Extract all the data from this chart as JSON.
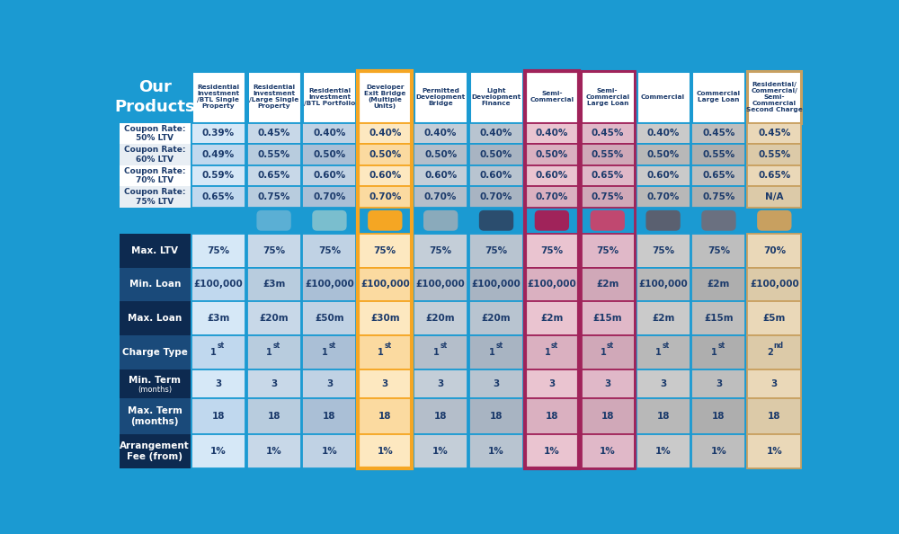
{
  "bg_color": "#1B9AD2",
  "columns": [
    {
      "label": "Residential\nInvestment\n/BTL Single\nProperty",
      "border": "#1B9AD2",
      "bg_light": "#D6E8F7",
      "bg_dark": "#C0D8EE",
      "icon_bg": "#1B9AD2"
    },
    {
      "label": "Residential\nInvestment\n/Large Single\nProperty",
      "border": "#1B9AD2",
      "bg_light": "#C8D8E8",
      "bg_dark": "#B8CCDE",
      "icon_bg": "#5BAFD4"
    },
    {
      "label": "Residential\nInvestment\n/BTL Portfolio",
      "border": "#1B9AD2",
      "bg_light": "#C0D2E4",
      "bg_dark": "#AABFD6",
      "icon_bg": "#7ABECE"
    },
    {
      "label": "Developer\nExit Bridge\n(Multiple\nUnits)",
      "border": "#F5A623",
      "bg_light": "#FDE8C0",
      "bg_dark": "#FBDAA0",
      "icon_bg": "#F5A623"
    },
    {
      "label": "Permitted\nDevelopment\nBridge",
      "border": "#1B9AD2",
      "bg_light": "#C4CED8",
      "bg_dark": "#B4BECA",
      "icon_bg": "#8AAABB"
    },
    {
      "label": "Light\nDevelopment\nFinance",
      "border": "#1B9AD2",
      "bg_light": "#B8C4D0",
      "bg_dark": "#A8B4C2",
      "icon_bg": "#2B4D6E"
    },
    {
      "label": "Semi-\nCommercial",
      "border": "#A0235A",
      "bg_light": "#EAC4D0",
      "bg_dark": "#DAB0C0",
      "icon_bg": "#A0235A"
    },
    {
      "label": "Semi-\nCommercial\nLarge Loan",
      "border": "#A0235A",
      "bg_light": "#E0B8C8",
      "bg_dark": "#D0A8B8",
      "icon_bg": "#C04870"
    },
    {
      "label": "Commercial",
      "border": "#1B9AD2",
      "bg_light": "#CACACA",
      "bg_dark": "#B8B8B8",
      "icon_bg": "#5A6070"
    },
    {
      "label": "Commercial\nLarge Loan",
      "border": "#1B9AD2",
      "bg_light": "#BEBEBE",
      "bg_dark": "#AEAEAE",
      "icon_bg": "#6A7080"
    },
    {
      "label": "Residential/\nCommercial/\nSemi-\nCommercial\nSecond Charge",
      "border": "#C8A060",
      "bg_light": "#EAD8B8",
      "bg_dark": "#DCCAA8",
      "icon_bg": "#C8A060"
    }
  ],
  "coupon_rows": [
    {
      "label": "Coupon Rate:\n50% LTV",
      "values": [
        "0.39%",
        "0.45%",
        "0.40%",
        "0.40%",
        "0.40%",
        "0.40%",
        "0.40%",
        "0.45%",
        "0.40%",
        "0.45%",
        "0.45%"
      ]
    },
    {
      "label": "Coupon Rate:\n60% LTV",
      "values": [
        "0.49%",
        "0.55%",
        "0.50%",
        "0.50%",
        "0.50%",
        "0.50%",
        "0.50%",
        "0.55%",
        "0.50%",
        "0.55%",
        "0.55%"
      ]
    },
    {
      "label": "Coupon Rate:\n70% LTV",
      "values": [
        "0.59%",
        "0.65%",
        "0.60%",
        "0.60%",
        "0.60%",
        "0.60%",
        "0.60%",
        "0.65%",
        "0.60%",
        "0.65%",
        "0.65%"
      ]
    },
    {
      "label": "Coupon Rate:\n75% LTV",
      "values": [
        "0.65%",
        "0.75%",
        "0.70%",
        "0.70%",
        "0.70%",
        "0.70%",
        "0.70%",
        "0.75%",
        "0.70%",
        "0.75%",
        "N/A"
      ]
    }
  ],
  "bottom_rows": [
    {
      "label": "Max. LTV",
      "label_dark": true,
      "values": [
        "75%",
        "75%",
        "75%",
        "75%",
        "75%",
        "75%",
        "75%",
        "75%",
        "75%",
        "75%",
        "70%"
      ]
    },
    {
      "label": "Min. Loan",
      "label_dark": false,
      "values": [
        "£100,000",
        "£3m",
        "£100,000",
        "£100,000",
        "£100,000",
        "£100,000",
        "£100,000",
        "£2m",
        "£100,000",
        "£2m",
        "£100,000"
      ]
    },
    {
      "label": "Max. Loan",
      "label_dark": true,
      "values": [
        "£3m",
        "£20m",
        "£50m",
        "£30m",
        "£20m",
        "£20m",
        "£2m",
        "£15m",
        "£2m",
        "£15m",
        "£5m"
      ]
    },
    {
      "label": "Charge Type",
      "label_dark": false,
      "values": [
        "1st",
        "1st",
        "1st",
        "1st",
        "1st",
        "1st",
        "1st",
        "1st",
        "1st",
        "1st",
        "2nd"
      ]
    },
    {
      "label": "Min. Term (months)",
      "label_dark": true,
      "values": [
        "3",
        "3",
        "3",
        "3",
        "3",
        "3",
        "3",
        "3",
        "3",
        "3",
        "3"
      ]
    },
    {
      "label": "Max. Term\n(months)",
      "label_dark": false,
      "values": [
        "18",
        "18",
        "18",
        "18",
        "18",
        "18",
        "18",
        "18",
        "18",
        "18",
        "18"
      ]
    },
    {
      "label": "Arrangement\nFee (from)",
      "label_dark": true,
      "values": [
        "1%",
        "1%",
        "1%",
        "1%",
        "1%",
        "1%",
        "1%",
        "1%",
        "1%",
        "1%",
        "1%"
      ]
    }
  ],
  "row_label_dark_bg": "#0D2A50",
  "row_label_light_bg": "#1A4A7A"
}
